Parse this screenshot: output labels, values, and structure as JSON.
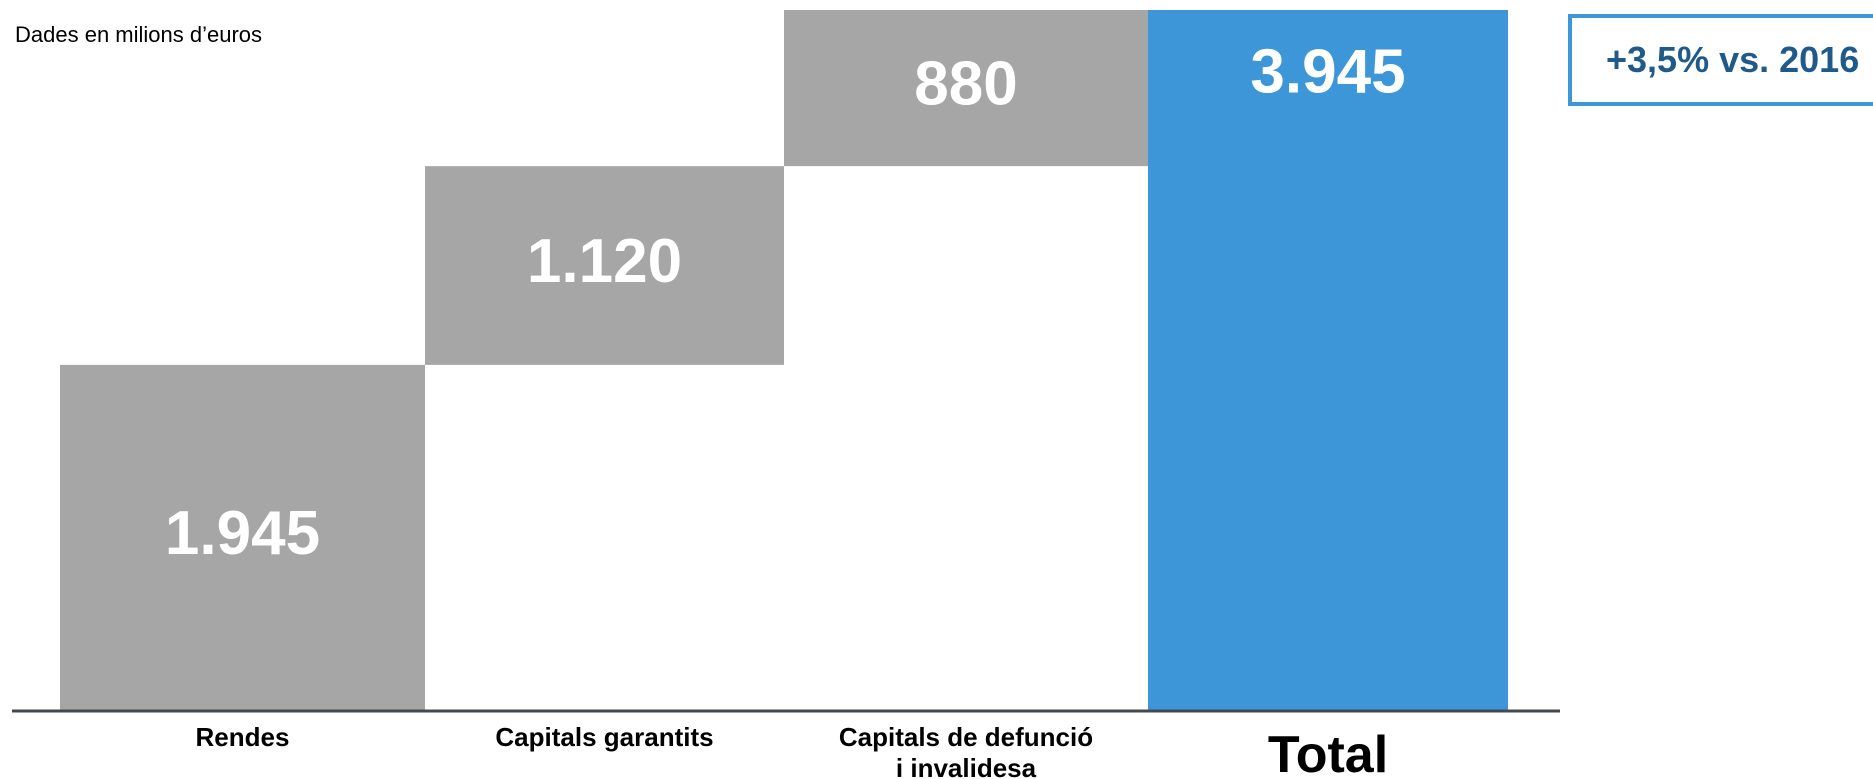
{
  "chart_data": {
    "type": "waterfall",
    "subtitle": "Dades en milions d’euros",
    "categories": [
      "Rendes",
      "Capitals garantits",
      "Capitals de defunció\ni invalidesa",
      "Total"
    ],
    "values": [
      1945,
      1120,
      880,
      3945
    ],
    "value_labels": [
      "1.945",
      "1.120",
      "880",
      "3.945"
    ],
    "measure": [
      "relative",
      "relative",
      "relative",
      "total"
    ],
    "colors": [
      "#a6a6a6",
      "#a6a6a6",
      "#a6a6a6",
      "#3c96d8"
    ],
    "annotation": "+3,5% vs. 2016"
  }
}
